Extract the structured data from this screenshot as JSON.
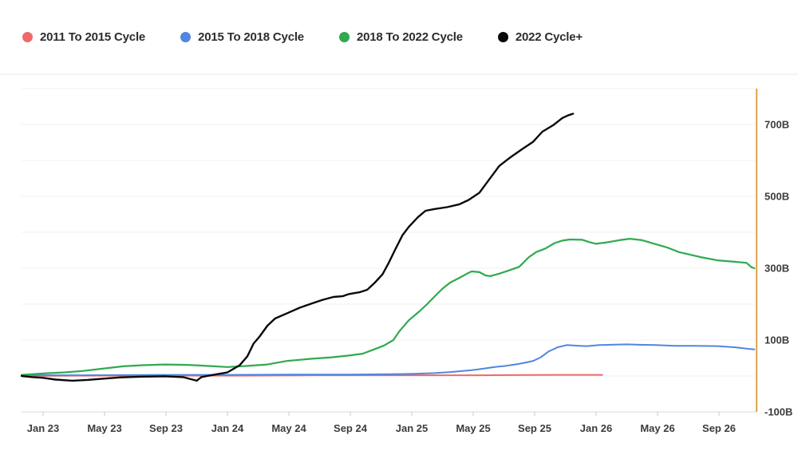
{
  "legend": {
    "items": [
      {
        "id": "cycle-2011-2015",
        "label": "2011 To 2015 Cycle",
        "color": "#ee6a6a"
      },
      {
        "id": "cycle-2015-2018",
        "label": "2015 To 2018 Cycle",
        "color": "#4f86e0"
      },
      {
        "id": "cycle-2018-2022",
        "label": "2018 To 2022 Cycle",
        "color": "#2faa4f"
      },
      {
        "id": "cycle-2022-plus",
        "label": "2022 Cycle+",
        "color": "#0a0a0a"
      }
    ]
  },
  "chart_data": {
    "type": "line",
    "title": "",
    "xlabel": "",
    "ylabel": "",
    "x_unit": "months since Jan 2023 (fractional)",
    "y_unit": "billions (B)",
    "ylim": [
      -100,
      800
    ],
    "grid": "horizontal gridlines every 100B, very light gray",
    "legend_position": "top-left, horizontal",
    "right_axis": true,
    "x_ticks": [
      {
        "label": "Jan 23",
        "month": 0
      },
      {
        "label": "May 23",
        "month": 4
      },
      {
        "label": "Sep 23",
        "month": 8
      },
      {
        "label": "Jan 24",
        "month": 12
      },
      {
        "label": "May 24",
        "month": 16
      },
      {
        "label": "Sep 24",
        "month": 20
      },
      {
        "label": "Jan 25",
        "month": 24
      },
      {
        "label": "May 25",
        "month": 28
      },
      {
        "label": "Sep 25",
        "month": 32
      },
      {
        "label": "Jan 26",
        "month": 36
      },
      {
        "label": "May 26",
        "month": 40
      },
      {
        "label": "Sep 26",
        "month": 44
      }
    ],
    "y_ticks": [
      {
        "label": "700B",
        "value": 700
      },
      {
        "label": "500B",
        "value": 500
      },
      {
        "label": "300B",
        "value": 300
      },
      {
        "label": "100B",
        "value": 100
      },
      {
        "label": "-100B",
        "value": -100
      }
    ],
    "marker_line": {
      "name": "current-position-marker",
      "color": "#dba44a",
      "month": 46.45,
      "from": -100,
      "to": 800
    },
    "series": [
      {
        "name": "2011 To 2015 Cycle",
        "id": "cycle-2011-2015",
        "color": "#ee6a6a",
        "width": 2,
        "points": [
          [
            -1.4,
            0
          ],
          [
            2.4,
            1
          ],
          [
            7.6,
            1
          ],
          [
            12.8,
            1
          ],
          [
            18,
            2
          ],
          [
            23.2,
            2
          ],
          [
            28.4,
            2
          ],
          [
            33.6,
            3
          ],
          [
            36.4,
            3
          ]
        ]
      },
      {
        "name": "2015 To 2018 Cycle",
        "id": "cycle-2015-2018",
        "color": "#4f86e0",
        "width": 2,
        "points": [
          [
            -1.4,
            2
          ],
          [
            2.4,
            2
          ],
          [
            7.6,
            3
          ],
          [
            12,
            3
          ],
          [
            15.9,
            4
          ],
          [
            19.9,
            4
          ],
          [
            22.6,
            5
          ],
          [
            24.2,
            6
          ],
          [
            25.5,
            8
          ],
          [
            26.5,
            11
          ],
          [
            27.3,
            14
          ],
          [
            27.9,
            16
          ],
          [
            28.6,
            20
          ],
          [
            29.4,
            25
          ],
          [
            30.1,
            28
          ],
          [
            30.9,
            33
          ],
          [
            31.5,
            38
          ],
          [
            31.9,
            42
          ],
          [
            32.4,
            52
          ],
          [
            32.9,
            68
          ],
          [
            33.5,
            80
          ],
          [
            34.1,
            86
          ],
          [
            34.9,
            84
          ],
          [
            35.4,
            83
          ],
          [
            36.2,
            86
          ],
          [
            36.9,
            87
          ],
          [
            38,
            88
          ],
          [
            38.8,
            87
          ],
          [
            39.9,
            86
          ],
          [
            41.1,
            84
          ],
          [
            42.4,
            84
          ],
          [
            43.9,
            83
          ],
          [
            45,
            80
          ],
          [
            45.8,
            76
          ],
          [
            46.3,
            74
          ]
        ]
      },
      {
        "name": "2018 To 2022 Cycle",
        "id": "cycle-2018-2022",
        "color": "#2faa4f",
        "width": 2.2,
        "points": [
          [
            -1.4,
            3
          ],
          [
            0,
            7
          ],
          [
            1.4,
            10
          ],
          [
            2.6,
            14
          ],
          [
            3.8,
            20
          ],
          [
            5.2,
            27
          ],
          [
            6.5,
            30
          ],
          [
            7.9,
            32
          ],
          [
            9.4,
            31
          ],
          [
            10.7,
            28
          ],
          [
            12,
            25
          ],
          [
            13.3,
            28
          ],
          [
            14.6,
            32
          ],
          [
            15.9,
            42
          ],
          [
            17.5,
            48
          ],
          [
            18.8,
            52
          ],
          [
            19.9,
            57
          ],
          [
            20.8,
            62
          ],
          [
            21.6,
            75
          ],
          [
            22.2,
            85
          ],
          [
            22.8,
            100
          ],
          [
            23.2,
            125
          ],
          [
            23.8,
            155
          ],
          [
            24.5,
            180
          ],
          [
            25,
            200
          ],
          [
            25.5,
            222
          ],
          [
            26,
            243
          ],
          [
            26.5,
            260
          ],
          [
            27.1,
            273
          ],
          [
            27.6,
            285
          ],
          [
            27.9,
            291
          ],
          [
            28.4,
            289
          ],
          [
            28.8,
            280
          ],
          [
            29.1,
            278
          ],
          [
            29.7,
            285
          ],
          [
            30.4,
            295
          ],
          [
            31,
            304
          ],
          [
            31.6,
            330
          ],
          [
            32.1,
            345
          ],
          [
            32.7,
            355
          ],
          [
            33.3,
            370
          ],
          [
            33.8,
            377
          ],
          [
            34.3,
            380
          ],
          [
            35.1,
            379
          ],
          [
            35.6,
            372
          ],
          [
            36,
            368
          ],
          [
            36.7,
            372
          ],
          [
            37.5,
            378
          ],
          [
            38.2,
            382
          ],
          [
            39,
            378
          ],
          [
            39.8,
            368
          ],
          [
            40.6,
            358
          ],
          [
            41.4,
            345
          ],
          [
            42.1,
            338
          ],
          [
            42.9,
            330
          ],
          [
            43.9,
            322
          ],
          [
            45,
            318
          ],
          [
            45.8,
            315
          ],
          [
            46.1,
            303
          ],
          [
            46.3,
            300
          ]
        ]
      },
      {
        "name": "2022 Cycle+",
        "id": "cycle-2022-plus",
        "color": "#0a0a0a",
        "width": 2.4,
        "points": [
          [
            -1.4,
            0
          ],
          [
            -0.7,
            -3
          ],
          [
            0,
            -5
          ],
          [
            0.8,
            -10
          ],
          [
            1.9,
            -13
          ],
          [
            2.9,
            -11
          ],
          [
            3.8,
            -8
          ],
          [
            5,
            -4
          ],
          [
            6.3,
            -2
          ],
          [
            7.9,
            -1
          ],
          [
            9.1,
            -3
          ],
          [
            10,
            -13
          ],
          [
            10.3,
            -3
          ],
          [
            11.2,
            4
          ],
          [
            12,
            10
          ],
          [
            12.8,
            30
          ],
          [
            13.3,
            55
          ],
          [
            13.7,
            90
          ],
          [
            14.1,
            110
          ],
          [
            14.6,
            140
          ],
          [
            15.1,
            160
          ],
          [
            15.9,
            175
          ],
          [
            16.7,
            190
          ],
          [
            17.5,
            202
          ],
          [
            18.2,
            212
          ],
          [
            18.9,
            220
          ],
          [
            19.5,
            222
          ],
          [
            19.9,
            228
          ],
          [
            20.6,
            233
          ],
          [
            21.1,
            240
          ],
          [
            21.6,
            260
          ],
          [
            22.1,
            283
          ],
          [
            22.5,
            315
          ],
          [
            22.9,
            350
          ],
          [
            23.4,
            392
          ],
          [
            23.8,
            415
          ],
          [
            24.4,
            442
          ],
          [
            24.9,
            460
          ],
          [
            25.5,
            465
          ],
          [
            26.3,
            470
          ],
          [
            27.1,
            478
          ],
          [
            27.7,
            490
          ],
          [
            28.4,
            510
          ],
          [
            29,
            545
          ],
          [
            29.7,
            585
          ],
          [
            30.4,
            608
          ],
          [
            31.2,
            632
          ],
          [
            31.9,
            652
          ],
          [
            32.5,
            680
          ],
          [
            33.2,
            698
          ],
          [
            33.8,
            718
          ],
          [
            34.2,
            726
          ],
          [
            34.5,
            730
          ]
        ]
      }
    ]
  },
  "style": {
    "grid_color": "#f2f2f2",
    "axis_line_color": "#d9d9d9",
    "tick_color": "#c9c9c9",
    "label_color": "#3c3c3c",
    "divider_color": "#e7e7e7"
  }
}
